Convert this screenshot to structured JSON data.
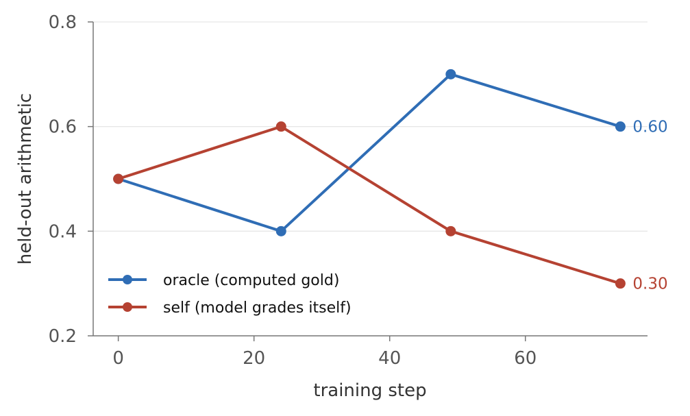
{
  "chart_data": {
    "type": "line",
    "title": "",
    "xlabel": "training step",
    "ylabel": "held-out arithmetic",
    "xlim": [
      -3.7,
      78
    ],
    "ylim": [
      0.2,
      0.8
    ],
    "xticks": [
      0,
      20,
      40,
      60
    ],
    "xtick_labels": [
      "0",
      "20",
      "40",
      "60"
    ],
    "yticks": [
      0.2,
      0.4,
      0.6,
      0.8
    ],
    "ytick_labels": [
      "0.2",
      "0.4",
      "0.6",
      "0.8"
    ],
    "grid": "horizontal",
    "legend_position": "lower-left",
    "series": [
      {
        "name": "oracle (computed gold)",
        "color": "#2f6db5",
        "x": [
          0,
          24,
          49,
          74
        ],
        "y": [
          0.5,
          0.4,
          0.7,
          0.6
        ],
        "end_label": "0.60"
      },
      {
        "name": "self (model grades itself)",
        "color": "#b54232",
        "x": [
          0,
          24,
          49,
          74
        ],
        "y": [
          0.5,
          0.6,
          0.4,
          0.3
        ],
        "end_label": "0.30"
      }
    ]
  }
}
